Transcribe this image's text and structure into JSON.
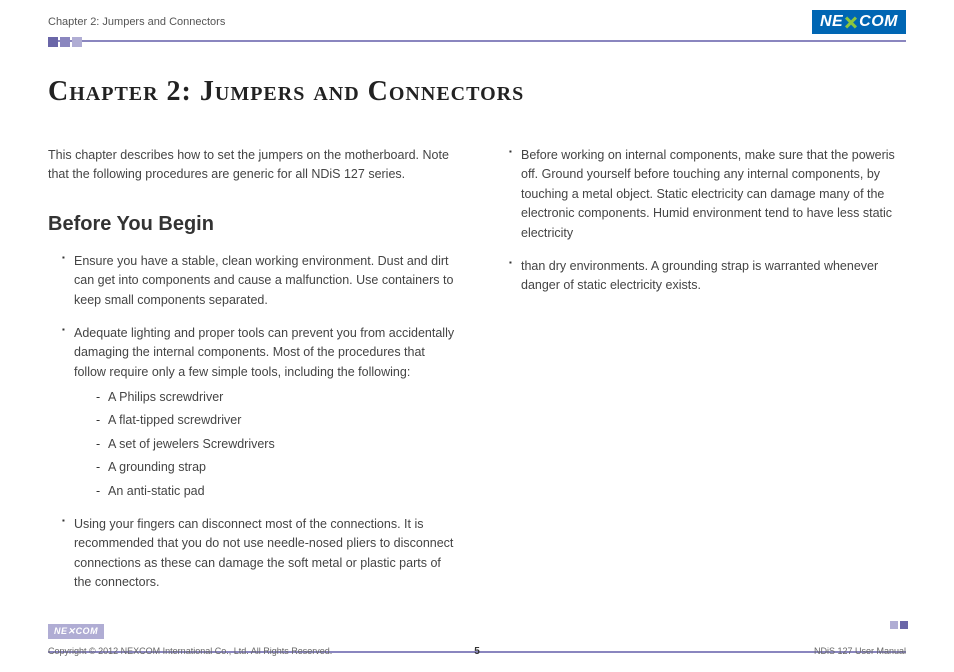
{
  "header": {
    "title": "Chapter 2: Jumpers and Connectors",
    "logo_left": "NE",
    "logo_right": "COM"
  },
  "squares": {
    "colors": [
      "#6a66a8",
      "#8a86bf",
      "#b0add4"
    ]
  },
  "chapter_title": "Chapter 2: Jumpers and Connectors",
  "intro": "This chapter describes how to set the jumpers on the motherboard. Note that the following procedures are generic for all NDiS 127 series.",
  "section_title": "Before You Begin",
  "left_bullets": {
    "b1": "Ensure you have a stable, clean working environment. Dust and dirt can get into components and cause a malfunction. Use containers to keep small components separated.",
    "b2_lead": "Adequate lighting and proper tools can prevent you from accidentally damaging the internal components. Most of the procedures that follow require only a few simple tools, including the following:",
    "b2_items": {
      "d1": "A Philips screwdriver",
      "d2": "A flat-tipped screwdriver",
      "d3": "A set of jewelers Screwdrivers",
      "d4": "A grounding strap",
      "d5": "An anti-static pad"
    },
    "b3": "Using your fingers can disconnect most of the connections. It is recommended that you do not use needle-nosed pliers to disconnect connections as these can damage the soft metal or plastic parts of the connectors."
  },
  "right_bullets": {
    "b1": "Before working on internal components, make sure that the poweris off. Ground yourself before touching any internal components, by touching a metal object. Static electricity can damage many of the electronic components. Humid environment tend to have less static electricity",
    "b2": "than dry environments. A grounding strap is warranted whenever danger of static electricity exists."
  },
  "footer": {
    "logo_left": "NE",
    "logo_right": "COM",
    "copyright": "Copyright © 2012 NEXCOM International Co., Ltd. All Rights Reserved.",
    "page": "5",
    "manual": "NDiS 127 User Manual",
    "marks_colors": [
      "#b0add4",
      "#6a66a8"
    ]
  },
  "colors": {
    "rule": "#8a86bf",
    "logo_bg": "#0066b3",
    "logo_accent": "#8cc63f",
    "text": "#333333"
  }
}
